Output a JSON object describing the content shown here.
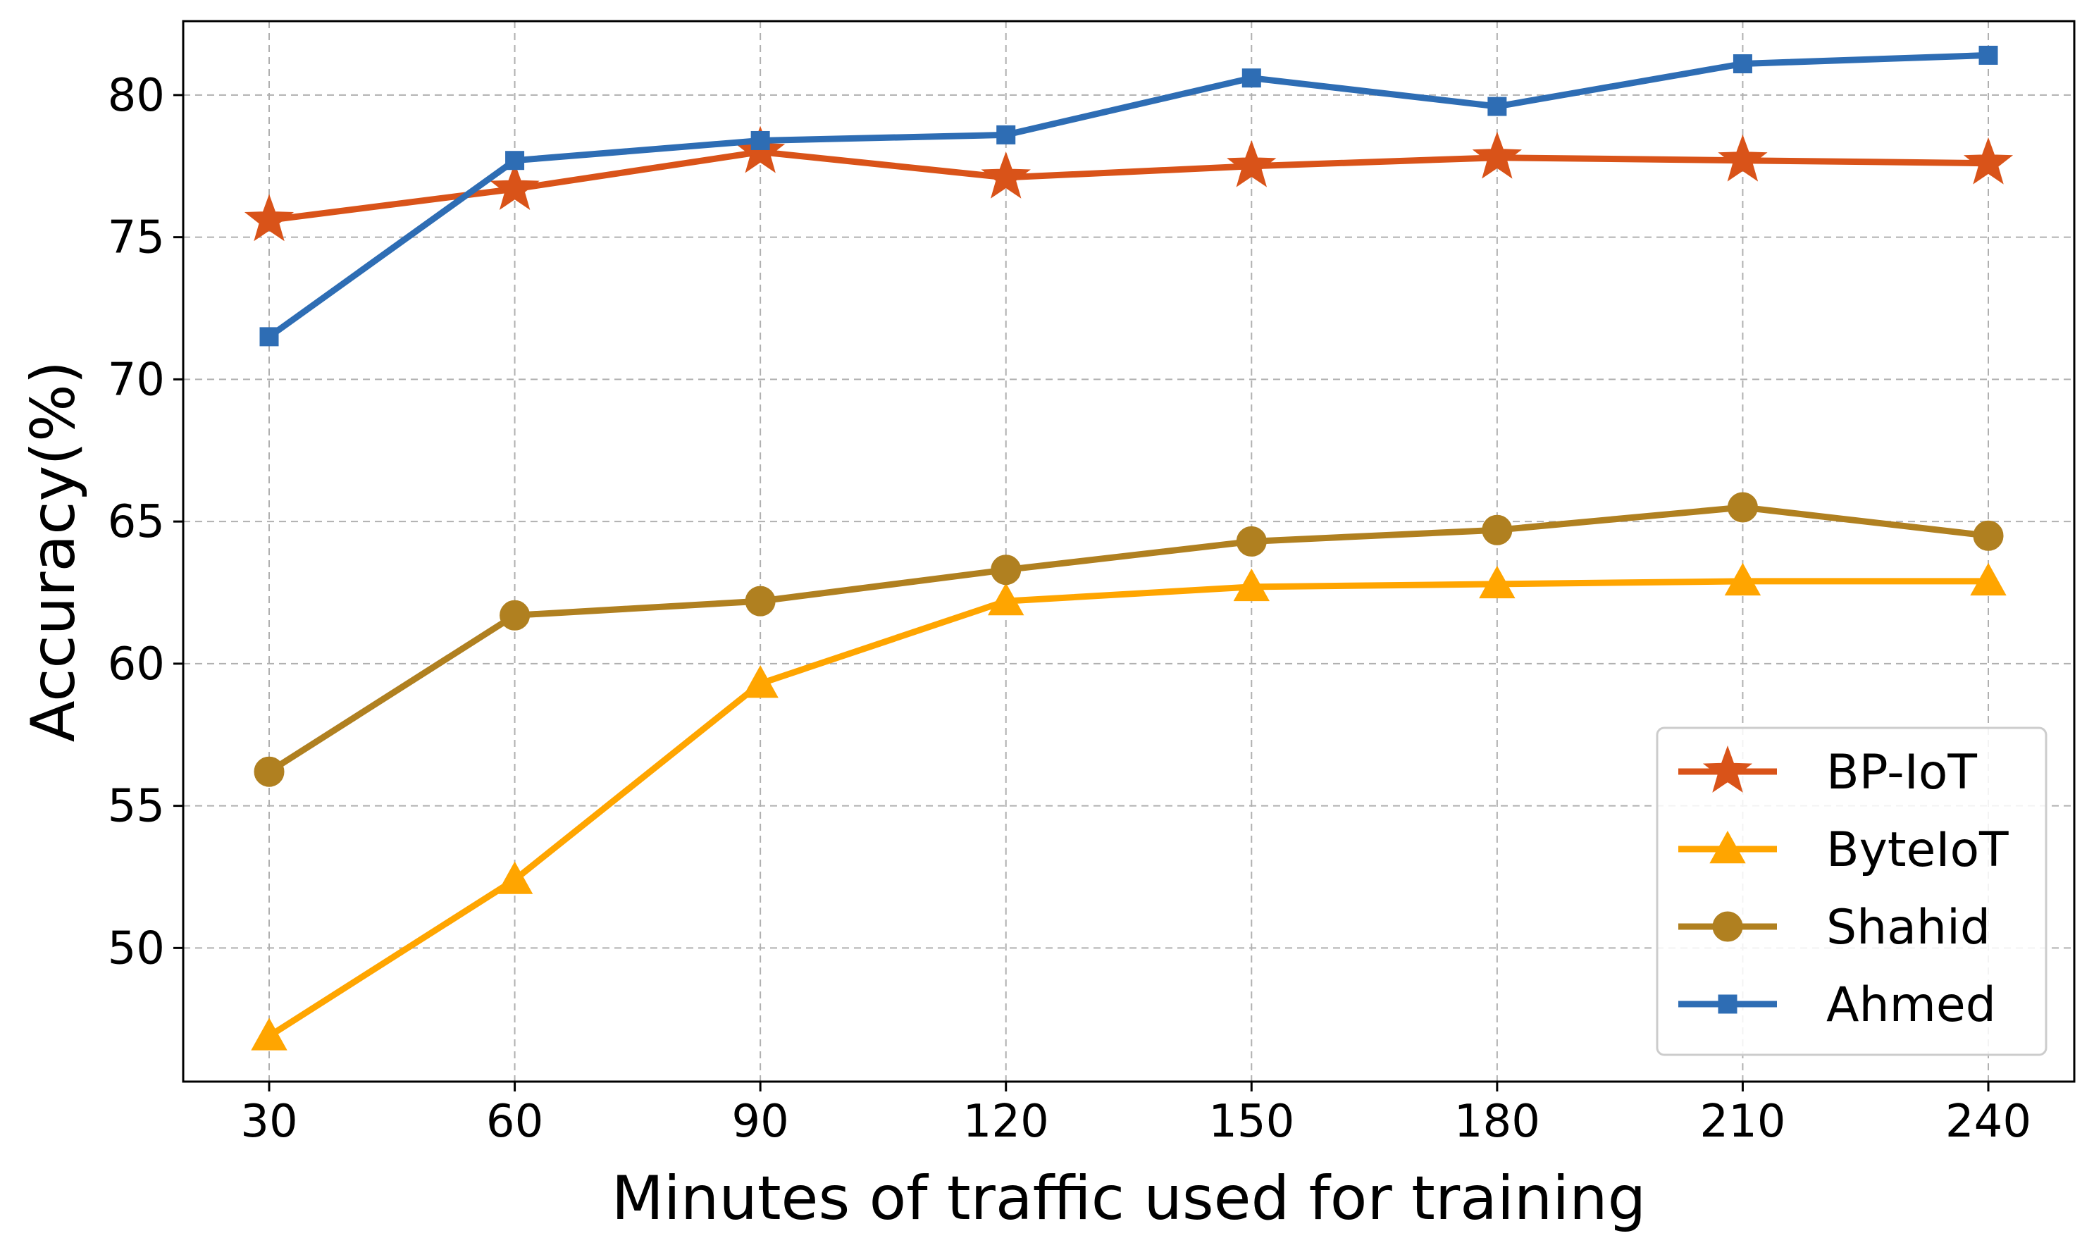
{
  "chart_data": {
    "type": "line",
    "xlabel": "Minutes of traffic used for training",
    "ylabel": "Accuracy(%)",
    "x": [
      30,
      60,
      90,
      120,
      150,
      180,
      210,
      240
    ],
    "xlim": [
      19.5,
      250.5
    ],
    "ylim": [
      45.3,
      82.6
    ],
    "yticks": [
      50,
      55,
      60,
      65,
      70,
      75,
      80
    ],
    "grid": true,
    "legend_position": "lower-right",
    "series": [
      {
        "name": "BP-IoT",
        "color": "#d95319",
        "marker": "star",
        "values": [
          75.6,
          76.7,
          78.0,
          77.1,
          77.5,
          77.8,
          77.7,
          77.6
        ]
      },
      {
        "name": "ByteIoT",
        "color": "#ffa500",
        "marker": "triangle",
        "values": [
          46.9,
          52.4,
          59.3,
          62.2,
          62.7,
          62.8,
          62.9,
          62.9
        ]
      },
      {
        "name": "Shahid",
        "color": "#b08020",
        "marker": "circle",
        "values": [
          56.2,
          61.7,
          62.2,
          63.3,
          64.3,
          64.7,
          65.5,
          64.5
        ]
      },
      {
        "name": "Ahmed",
        "color": "#2e6db4",
        "marker": "square",
        "values": [
          71.5,
          77.7,
          78.4,
          78.6,
          80.6,
          79.6,
          81.1,
          81.4
        ]
      }
    ]
  }
}
